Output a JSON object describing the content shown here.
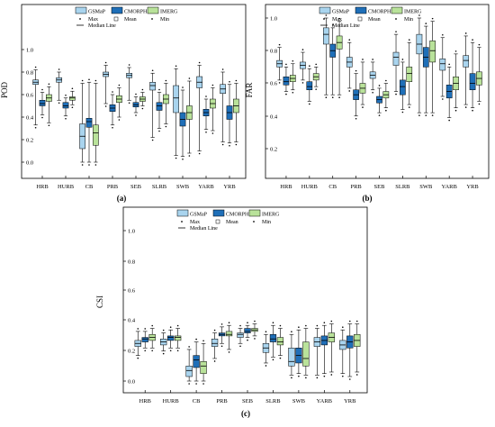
{
  "chart_data": [
    {
      "type": "box",
      "panel_label": "(a)",
      "ylabel": "POD",
      "ylim": [
        -0.05,
        1.1
      ],
      "yticks": [
        "0.0",
        "0.2",
        "0.4",
        "0.6",
        "0.8",
        "1.0"
      ],
      "categories": [
        "HRB",
        "HURB",
        "CB",
        "PRB",
        "SEB",
        "SLRB",
        "SWB",
        "YARB",
        "YRB"
      ],
      "legend": {
        "series_names": [
          "GSMaP",
          "CMORPH",
          "IMERG"
        ],
        "max": "Max",
        "mean": "Mean",
        "min": "Min",
        "median": "Median Line"
      },
      "series": [
        {
          "name": "GSMaP",
          "color": "#a9d4ee",
          "boxes": [
            {
              "min": 0.33,
              "q1": 0.69,
              "median": 0.71,
              "q3": 0.73,
              "max": 0.82
            },
            {
              "min": 0.55,
              "q1": 0.71,
              "median": 0.73,
              "q3": 0.75,
              "max": 0.8
            },
            {
              "min": 0.0,
              "q1": 0.12,
              "median": 0.23,
              "q3": 0.34,
              "max": 0.7
            },
            {
              "min": 0.52,
              "q1": 0.76,
              "median": 0.78,
              "q3": 0.8,
              "max": 0.86
            },
            {
              "min": 0.55,
              "q1": 0.75,
              "median": 0.77,
              "q3": 0.79,
              "max": 0.84
            },
            {
              "min": 0.22,
              "q1": 0.64,
              "median": 0.68,
              "q3": 0.71,
              "max": 0.79
            },
            {
              "min": 0.06,
              "q1": 0.44,
              "median": 0.57,
              "q3": 0.68,
              "max": 0.83
            },
            {
              "min": 0.1,
              "q1": 0.66,
              "median": 0.71,
              "q3": 0.76,
              "max": 0.86
            },
            {
              "min": 0.18,
              "q1": 0.61,
              "median": 0.65,
              "q3": 0.69,
              "max": 0.8
            }
          ]
        },
        {
          "name": "CMORPH",
          "color": "#1f6fb8",
          "boxes": [
            {
              "min": 0.42,
              "q1": 0.5,
              "median": 0.52,
              "q3": 0.55,
              "max": 0.62
            },
            {
              "min": 0.41,
              "q1": 0.48,
              "median": 0.5,
              "q3": 0.53,
              "max": 0.57
            },
            {
              "min": 0.0,
              "q1": 0.31,
              "median": 0.36,
              "q3": 0.39,
              "max": 0.71
            },
            {
              "min": 0.33,
              "q1": 0.45,
              "median": 0.48,
              "q3": 0.51,
              "max": 0.6
            },
            {
              "min": 0.44,
              "q1": 0.49,
              "median": 0.51,
              "q3": 0.53,
              "max": 0.58
            },
            {
              "min": 0.3,
              "q1": 0.46,
              "median": 0.5,
              "q3": 0.53,
              "max": 0.62
            },
            {
              "min": 0.05,
              "q1": 0.32,
              "median": 0.38,
              "q3": 0.44,
              "max": 0.64
            },
            {
              "min": 0.29,
              "q1": 0.41,
              "median": 0.44,
              "q3": 0.47,
              "max": 0.56
            },
            {
              "min": 0.17,
              "q1": 0.38,
              "median": 0.44,
              "q3": 0.5,
              "max": 0.69
            }
          ]
        },
        {
          "name": "IMERG",
          "color": "#b9e29a",
          "boxes": [
            {
              "min": 0.35,
              "q1": 0.54,
              "median": 0.57,
              "q3": 0.6,
              "max": 0.67
            },
            {
              "min": 0.51,
              "q1": 0.55,
              "median": 0.57,
              "q3": 0.58,
              "max": 0.63
            },
            {
              "min": 0.0,
              "q1": 0.15,
              "median": 0.26,
              "q3": 0.33,
              "max": 0.7
            },
            {
              "min": 0.4,
              "q1": 0.53,
              "median": 0.56,
              "q3": 0.59,
              "max": 0.66
            },
            {
              "min": 0.5,
              "q1": 0.54,
              "median": 0.56,
              "q3": 0.58,
              "max": 0.62
            },
            {
              "min": 0.34,
              "q1": 0.52,
              "median": 0.56,
              "q3": 0.6,
              "max": 0.7
            },
            {
              "min": 0.08,
              "q1": 0.38,
              "median": 0.44,
              "q3": 0.5,
              "max": 0.72
            },
            {
              "min": 0.28,
              "q1": 0.48,
              "median": 0.52,
              "q3": 0.56,
              "max": 0.66
            },
            {
              "min": 0.18,
              "q1": 0.44,
              "median": 0.5,
              "q3": 0.56,
              "max": 0.7
            }
          ]
        }
      ]
    },
    {
      "type": "box",
      "panel_label": "(b)",
      "ylabel": "FAR",
      "ylim": [
        0.0,
        1.1
      ],
      "yticks": [
        "0.2",
        "0.4",
        "0.6",
        "0.8",
        "1.0"
      ],
      "categories": [
        "HRB",
        "HURB",
        "CB",
        "PRB",
        "SEB",
        "SLRB",
        "SWB",
        "YARB",
        "YRB"
      ],
      "legend": {
        "series_names": [
          "GSMaP",
          "CMORPH",
          "IMERG"
        ],
        "max": "Max",
        "mean": "Mean",
        "min": "Min",
        "median": "Median Line"
      },
      "series": [
        {
          "name": "GSMaP",
          "color": "#a9d4ee",
          "boxes": [
            {
              "min": 0.62,
              "q1": 0.7,
              "median": 0.72,
              "q3": 0.74,
              "max": 0.82
            },
            {
              "min": 0.62,
              "q1": 0.69,
              "median": 0.71,
              "q3": 0.73,
              "max": 0.79
            },
            {
              "min": 0.53,
              "q1": 0.84,
              "median": 0.9,
              "q3": 0.94,
              "max": 1.0
            },
            {
              "min": 0.57,
              "q1": 0.7,
              "median": 0.73,
              "q3": 0.76,
              "max": 0.85
            },
            {
              "min": 0.56,
              "q1": 0.63,
              "median": 0.65,
              "q3": 0.67,
              "max": 0.73
            },
            {
              "min": 0.55,
              "q1": 0.71,
              "median": 0.76,
              "q3": 0.79,
              "max": 0.9
            },
            {
              "min": 0.42,
              "q1": 0.78,
              "median": 0.84,
              "q3": 0.9,
              "max": 1.0
            },
            {
              "min": 0.52,
              "q1": 0.68,
              "median": 0.72,
              "q3": 0.75,
              "max": 0.88
            },
            {
              "min": 0.47,
              "q1": 0.7,
              "median": 0.74,
              "q3": 0.77,
              "max": 0.89
            }
          ]
        },
        {
          "name": "CMORPH",
          "color": "#1f6fb8",
          "boxes": [
            {
              "min": 0.55,
              "q1": 0.59,
              "median": 0.61,
              "q3": 0.64,
              "max": 0.7
            },
            {
              "min": 0.49,
              "q1": 0.56,
              "median": 0.58,
              "q3": 0.61,
              "max": 0.69
            },
            {
              "min": 0.53,
              "q1": 0.76,
              "median": 0.8,
              "q3": 0.84,
              "max": 0.94
            },
            {
              "min": 0.4,
              "q1": 0.5,
              "median": 0.53,
              "q3": 0.56,
              "max": 0.66
            },
            {
              "min": 0.42,
              "q1": 0.48,
              "median": 0.5,
              "q3": 0.52,
              "max": 0.57
            },
            {
              "min": 0.44,
              "q1": 0.53,
              "median": 0.58,
              "q3": 0.62,
              "max": 0.73
            },
            {
              "min": 0.42,
              "q1": 0.7,
              "median": 0.76,
              "q3": 0.82,
              "max": 0.95
            },
            {
              "min": 0.39,
              "q1": 0.51,
              "median": 0.55,
              "q3": 0.59,
              "max": 0.7
            },
            {
              "min": 0.45,
              "q1": 0.56,
              "median": 0.6,
              "q3": 0.66,
              "max": 0.85
            }
          ]
        },
        {
          "name": "IMERG",
          "color": "#b9e29a",
          "boxes": [
            {
              "min": 0.56,
              "q1": 0.61,
              "median": 0.63,
              "q3": 0.65,
              "max": 0.72
            },
            {
              "min": 0.58,
              "q1": 0.62,
              "median": 0.64,
              "q3": 0.66,
              "max": 0.7
            },
            {
              "min": 0.53,
              "q1": 0.81,
              "median": 0.85,
              "q3": 0.89,
              "max": 0.98
            },
            {
              "min": 0.47,
              "q1": 0.54,
              "median": 0.57,
              "q3": 0.6,
              "max": 0.73
            },
            {
              "min": 0.45,
              "q1": 0.51,
              "median": 0.53,
              "q3": 0.55,
              "max": 0.6
            },
            {
              "min": 0.47,
              "q1": 0.61,
              "median": 0.66,
              "q3": 0.7,
              "max": 0.85
            },
            {
              "min": 0.42,
              "q1": 0.73,
              "median": 0.8,
              "q3": 0.86,
              "max": 0.98
            },
            {
              "min": 0.45,
              "q1": 0.56,
              "median": 0.6,
              "q3": 0.64,
              "max": 0.78
            },
            {
              "min": 0.49,
              "q1": 0.59,
              "median": 0.63,
              "q3": 0.67,
              "max": 0.82
            }
          ]
        }
      ]
    },
    {
      "type": "box",
      "panel_label": "(c)",
      "ylabel": "CSI",
      "ylim": [
        -0.05,
        1.1
      ],
      "yticks": [
        "0.0",
        "0.2",
        "0.4",
        "0.6",
        "0.8",
        "1.0"
      ],
      "categories": [
        "HRB",
        "HURB",
        "CB",
        "PRB",
        "SEB",
        "SLRB",
        "SWB",
        "YARB",
        "YRB"
      ],
      "legend": {
        "series_names": [
          "GSMaP",
          "CMORPH",
          "IMERG"
        ],
        "max": "Max",
        "mean": "Mean",
        "min": "Min",
        "median": "Median Line"
      },
      "series": [
        {
          "name": "GSMaP",
          "color": "#a9d4ee",
          "boxes": [
            {
              "min": 0.17,
              "q1": 0.23,
              "median": 0.25,
              "q3": 0.27,
              "max": 0.33
            },
            {
              "min": 0.2,
              "q1": 0.24,
              "median": 0.26,
              "q3": 0.28,
              "max": 0.32
            },
            {
              "min": 0.0,
              "q1": 0.03,
              "median": 0.07,
              "q3": 0.1,
              "max": 0.21
            },
            {
              "min": 0.15,
              "q1": 0.23,
              "median": 0.25,
              "q3": 0.28,
              "max": 0.32
            },
            {
              "min": 0.25,
              "q1": 0.29,
              "median": 0.31,
              "q3": 0.32,
              "max": 0.35
            },
            {
              "min": 0.12,
              "q1": 0.19,
              "median": 0.22,
              "q3": 0.25,
              "max": 0.31
            },
            {
              "min": 0.04,
              "q1": 0.1,
              "median": 0.13,
              "q3": 0.22,
              "max": 0.31
            },
            {
              "min": 0.04,
              "q1": 0.23,
              "median": 0.26,
              "q3": 0.29,
              "max": 0.35
            },
            {
              "min": 0.05,
              "q1": 0.21,
              "median": 0.24,
              "q3": 0.27,
              "max": 0.34
            }
          ]
        },
        {
          "name": "CMORPH",
          "color": "#1f6fb8",
          "boxes": [
            {
              "min": 0.22,
              "q1": 0.26,
              "median": 0.28,
              "q3": 0.29,
              "max": 0.33
            },
            {
              "min": 0.22,
              "q1": 0.27,
              "median": 0.29,
              "q3": 0.3,
              "max": 0.34
            },
            {
              "min": 0.0,
              "q1": 0.09,
              "median": 0.14,
              "q3": 0.17,
              "max": 0.26
            },
            {
              "min": 0.25,
              "q1": 0.3,
              "median": 0.31,
              "q3": 0.32,
              "max": 0.36
            },
            {
              "min": 0.29,
              "q1": 0.32,
              "median": 0.33,
              "q3": 0.35,
              "max": 0.37
            },
            {
              "min": 0.16,
              "q1": 0.26,
              "median": 0.28,
              "q3": 0.31,
              "max": 0.37
            },
            {
              "min": 0.05,
              "q1": 0.12,
              "median": 0.17,
              "q3": 0.22,
              "max": 0.34
            },
            {
              "min": 0.05,
              "q1": 0.24,
              "median": 0.27,
              "q3": 0.3,
              "max": 0.37
            },
            {
              "min": 0.03,
              "q1": 0.22,
              "median": 0.26,
              "q3": 0.3,
              "max": 0.38
            }
          ]
        },
        {
          "name": "IMERG",
          "color": "#b9e29a",
          "boxes": [
            {
              "min": 0.22,
              "q1": 0.27,
              "median": 0.29,
              "q3": 0.31,
              "max": 0.35
            },
            {
              "min": 0.22,
              "q1": 0.27,
              "median": 0.29,
              "q3": 0.3,
              "max": 0.35
            },
            {
              "min": 0.0,
              "q1": 0.05,
              "median": 0.1,
              "q3": 0.13,
              "max": 0.25
            },
            {
              "min": 0.21,
              "q1": 0.3,
              "median": 0.31,
              "q3": 0.33,
              "max": 0.37
            },
            {
              "min": 0.3,
              "q1": 0.33,
              "median": 0.34,
              "q3": 0.35,
              "max": 0.38
            },
            {
              "min": 0.17,
              "q1": 0.24,
              "median": 0.26,
              "q3": 0.29,
              "max": 0.35
            },
            {
              "min": 0.04,
              "q1": 0.1,
              "median": 0.15,
              "q3": 0.26,
              "max": 0.35
            },
            {
              "min": 0.06,
              "q1": 0.26,
              "median": 0.29,
              "q3": 0.32,
              "max": 0.38
            },
            {
              "min": 0.06,
              "q1": 0.23,
              "median": 0.27,
              "q3": 0.31,
              "max": 0.38
            }
          ]
        }
      ]
    }
  ]
}
